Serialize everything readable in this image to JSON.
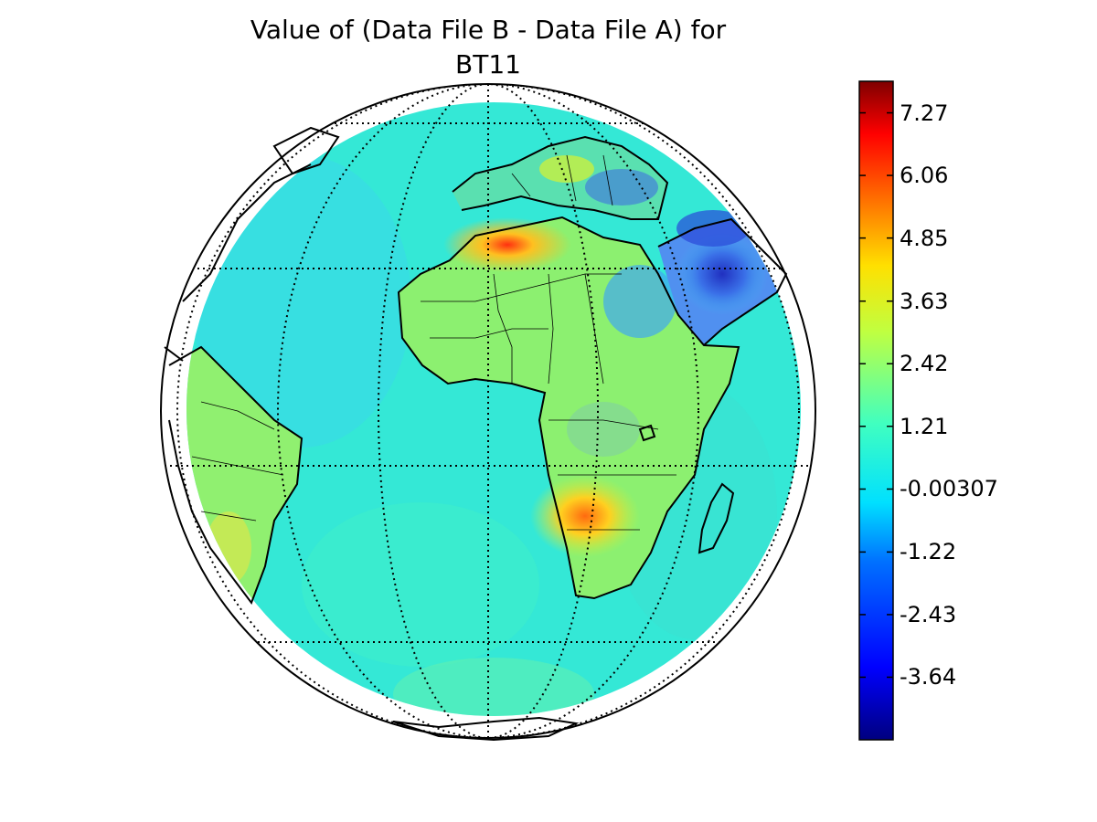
{
  "title": {
    "line1": "Value of (Data File B - Data File A) for",
    "line2": "BT11"
  },
  "map": {
    "projection": "orthographic",
    "graticule": "dotted",
    "ocean_value": "-0.00307",
    "colormap": "jet"
  },
  "colorbar": {
    "min": -4.85,
    "max": 7.88,
    "ticks": [
      "7.27",
      "6.06",
      "4.85",
      "3.63",
      "2.42",
      "1.21",
      "-0.00307",
      "-1.22",
      "-2.43",
      "-3.64"
    ],
    "tick_values": [
      7.27,
      6.06,
      4.85,
      3.63,
      2.42,
      1.21,
      -0.00307,
      -1.22,
      -2.43,
      -3.64
    ]
  },
  "colors": {
    "ocean": "#34e8d6",
    "land_warm": "#a8f05a",
    "hot": "#ff8a1a",
    "cold": "#2a3ad8",
    "outline": "#000000"
  }
}
